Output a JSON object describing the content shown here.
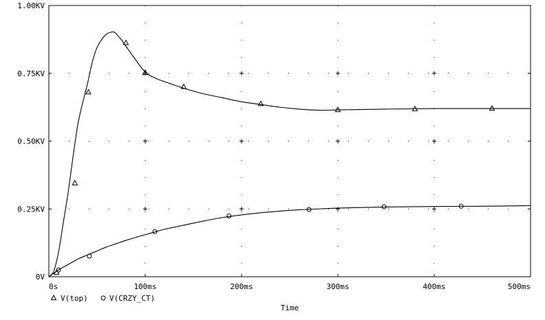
{
  "chart_data": {
    "type": "line",
    "xlabel": "Time",
    "ylabel": "",
    "xlim": [
      0,
      500
    ],
    "ylim": [
      0,
      1.0
    ],
    "x_ticks": [
      0,
      100,
      200,
      300,
      400,
      500
    ],
    "x_tick_labels": [
      "0s",
      "100ms",
      "200ms",
      "300ms",
      "400ms",
      "500ms"
    ],
    "y_ticks": [
      0,
      0.25,
      0.5,
      0.75,
      1.0
    ],
    "y_tick_labels": [
      "0V",
      "0.25KV",
      "0.50KV",
      "0.75KV",
      "1.00KV"
    ],
    "grid": "dotted-crosses",
    "legend_placement": "bottom-left",
    "series": [
      {
        "name": "V(top)",
        "marker": "triangle",
        "x": [
          0,
          5,
          10,
          15,
          20,
          25,
          30,
          35,
          40,
          45,
          50,
          55,
          60,
          65,
          68,
          70,
          75,
          80,
          90,
          100,
          110,
          125,
          140,
          160,
          180,
          200,
          220,
          240,
          260,
          280,
          300,
          350,
          400,
          450,
          500
        ],
        "values": [
          0,
          0.02,
          0.09,
          0.2,
          0.31,
          0.44,
          0.56,
          0.64,
          0.71,
          0.79,
          0.845,
          0.875,
          0.895,
          0.902,
          0.902,
          0.895,
          0.875,
          0.85,
          0.8,
          0.755,
          0.733,
          0.713,
          0.695,
          0.675,
          0.66,
          0.645,
          0.635,
          0.625,
          0.618,
          0.614,
          0.615,
          0.618,
          0.62,
          0.62,
          0.62
        ],
        "markers_x": [
          8,
          27,
          41,
          80,
          100,
          140,
          220,
          300,
          380,
          460
        ],
        "markers_y": [
          0.015,
          0.345,
          0.68,
          0.862,
          0.752,
          0.7,
          0.637,
          0.615,
          0.618,
          0.62
        ]
      },
      {
        "name": "V(CRZY_CT)",
        "marker": "circle",
        "x": [
          0,
          10,
          20,
          30,
          40,
          50,
          60,
          70,
          80,
          90,
          100,
          110,
          120,
          140,
          160,
          180,
          200,
          220,
          240,
          260,
          280,
          300,
          320,
          350,
          400,
          450,
          500
        ],
        "values": [
          0,
          0.025,
          0.045,
          0.065,
          0.08,
          0.095,
          0.11,
          0.122,
          0.134,
          0.145,
          0.155,
          0.165,
          0.175,
          0.19,
          0.205,
          0.218,
          0.228,
          0.236,
          0.242,
          0.247,
          0.25,
          0.253,
          0.255,
          0.257,
          0.259,
          0.26,
          0.262
        ],
        "markers_x": [
          10,
          42,
          110,
          187,
          270,
          348,
          428
        ],
        "markers_y": [
          0.025,
          0.076,
          0.166,
          0.224,
          0.248,
          0.258,
          0.26
        ]
      }
    ]
  }
}
